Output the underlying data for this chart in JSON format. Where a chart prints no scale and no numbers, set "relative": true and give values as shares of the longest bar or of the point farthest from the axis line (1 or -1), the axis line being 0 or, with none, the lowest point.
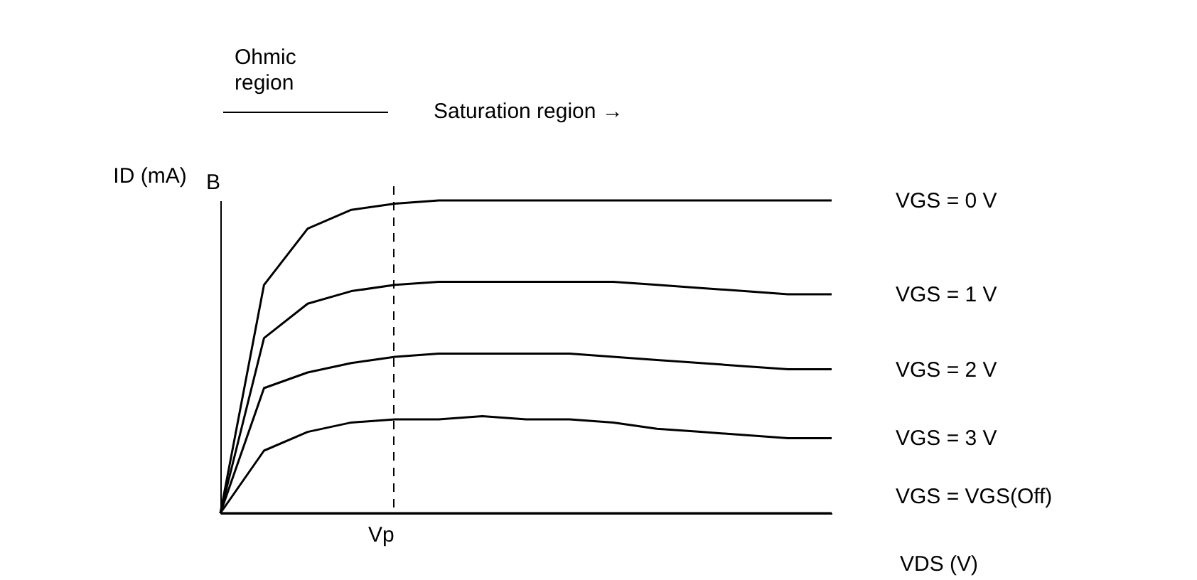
{
  "chart_data": {
    "type": "line",
    "relative": true,
    "xlabel": "VDS (V)",
    "ylabel": "ID (mA)",
    "categories": [
      null,
      null,
      null,
      null,
      null,
      null,
      null,
      null,
      null,
      null,
      null,
      null,
      null,
      null,
      null
    ],
    "series": [
      {
        "name": "VGS = 0 V",
        "color": "#000000",
        "values": [
          0,
          0.73,
          0.91,
          0.97,
          0.99,
          1,
          1,
          1,
          1,
          1,
          1,
          1,
          1,
          1,
          1
        ]
      },
      {
        "name": "VGS = 1 V",
        "color": "#000000",
        "values": [
          0,
          0.56,
          0.67,
          0.71,
          0.73,
          0.74,
          0.74,
          0.74,
          0.74,
          0.74,
          0.73,
          0.72,
          0.71,
          0.7,
          0.7
        ]
      },
      {
        "name": "VGS = 2 V",
        "color": "#000000",
        "values": [
          0,
          0.4,
          0.45,
          0.48,
          0.5,
          0.51,
          0.51,
          0.51,
          0.51,
          0.5,
          0.49,
          0.48,
          0.47,
          0.46,
          0.46
        ]
      },
      {
        "name": "VGS = 3 V",
        "color": "#000000",
        "values": [
          0,
          0.2,
          0.26,
          0.29,
          0.3,
          0.3,
          0.31,
          0.3,
          0.3,
          0.29,
          0.27,
          0.26,
          0.25,
          0.24,
          0.24
        ]
      },
      {
        "name": "VGS = VGS(Off)",
        "color": "#000000",
        "values": [
          0,
          0,
          0,
          0,
          0,
          0,
          0,
          0,
          0,
          0,
          0,
          0,
          0,
          0,
          0
        ]
      }
    ],
    "annotations": [
      "Ohmic region",
      "Saturation region →",
      "B",
      "Vp"
    ],
    "grid": false,
    "legend": false,
    "marker": "none",
    "line_style": "solid"
  }
}
